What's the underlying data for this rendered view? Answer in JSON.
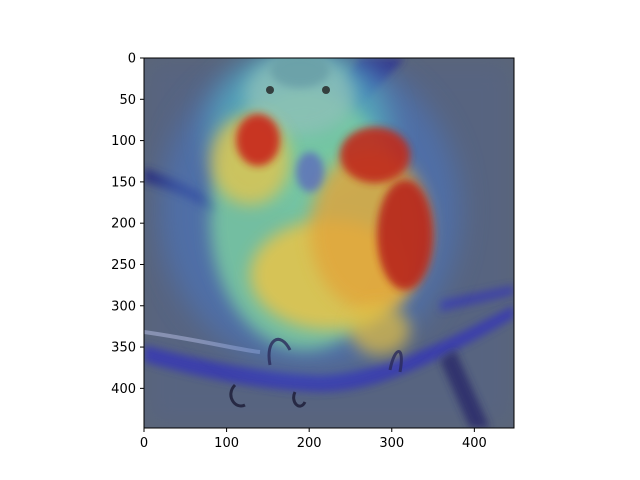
{
  "image": {
    "kind": "heatmap-overlay",
    "subject": "bird-on-branch",
    "colormap": "jet"
  },
  "axes": {
    "x_range": [
      0,
      448
    ],
    "y_range": [
      0,
      448
    ],
    "y_inverted": true,
    "x_ticks": [
      {
        "value": 0,
        "label": "0"
      },
      {
        "value": 100,
        "label": "100"
      },
      {
        "value": 200,
        "label": "200"
      },
      {
        "value": 300,
        "label": "300"
      },
      {
        "value": 400,
        "label": "400"
      }
    ],
    "y_ticks": [
      {
        "value": 0,
        "label": "0"
      },
      {
        "value": 50,
        "label": "50"
      },
      {
        "value": 100,
        "label": "100"
      },
      {
        "value": 150,
        "label": "150"
      },
      {
        "value": 200,
        "label": "200"
      },
      {
        "value": 250,
        "label": "250"
      },
      {
        "value": 300,
        "label": "300"
      },
      {
        "value": 350,
        "label": "350"
      },
      {
        "value": 400,
        "label": "400"
      }
    ]
  },
  "colors": {
    "background": "#5a6475",
    "hot": "#c8281e",
    "warm": "#e8b43a",
    "mid": "#6ec8a0",
    "cool": "#4a78c8",
    "branch": "#3a3cae"
  }
}
